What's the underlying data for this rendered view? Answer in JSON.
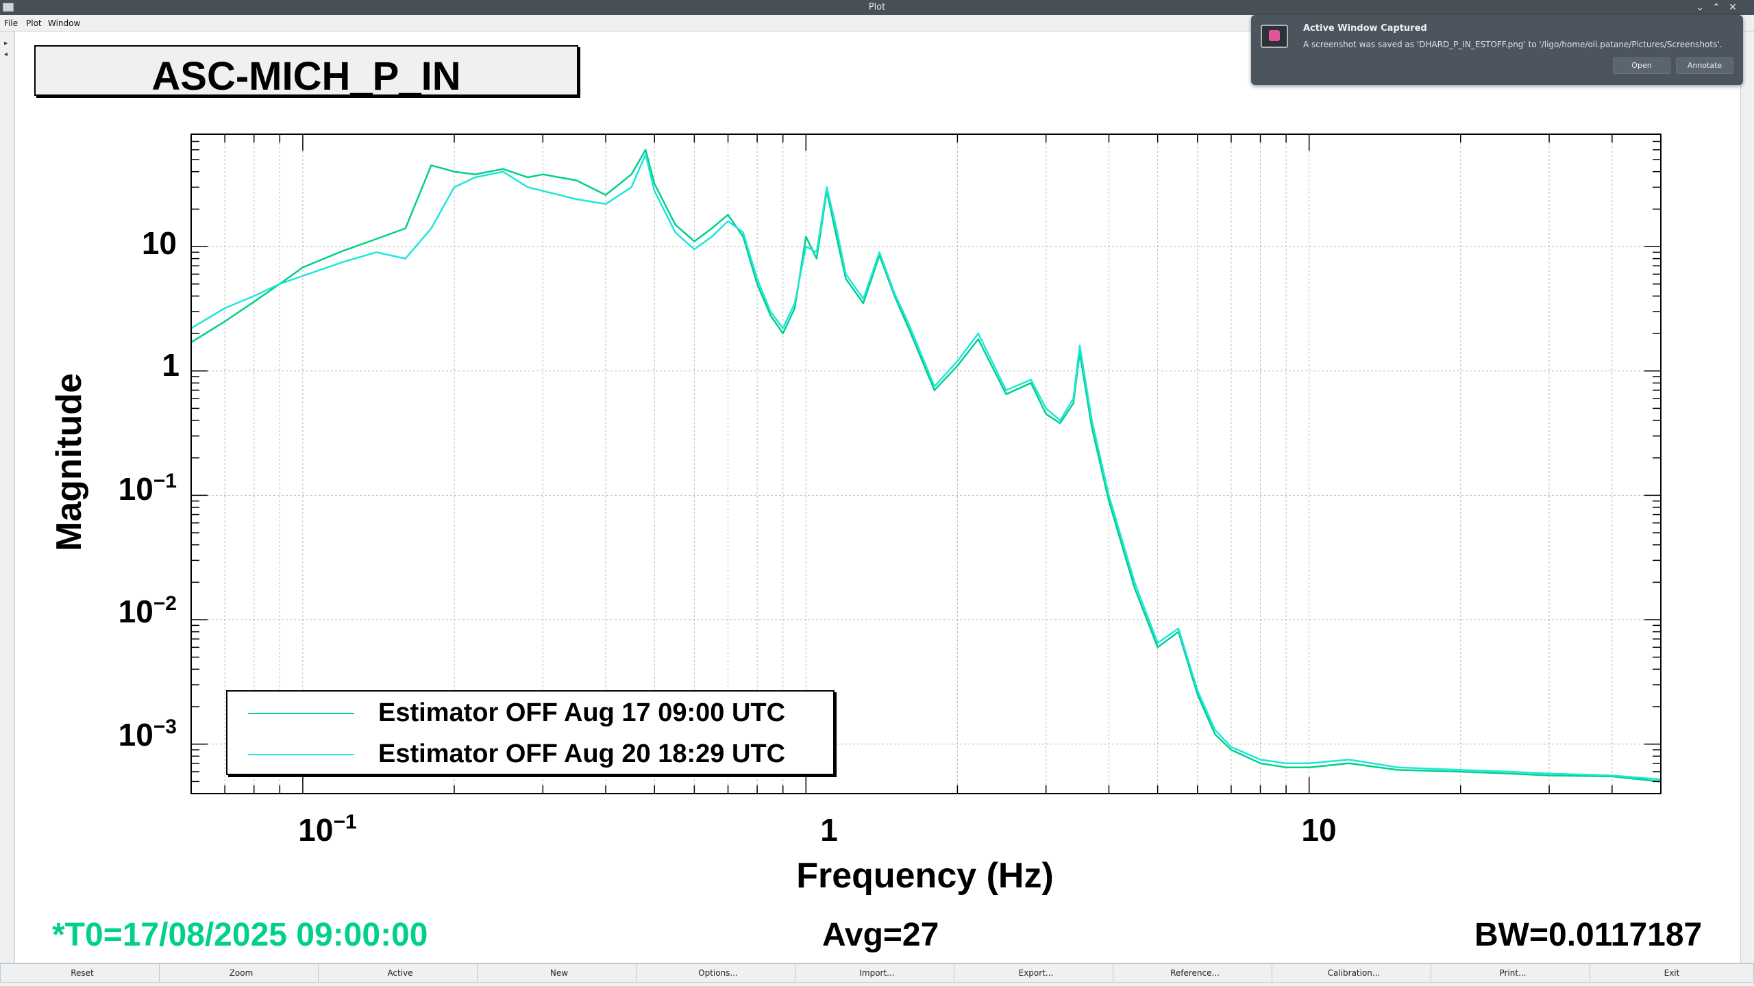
{
  "window": {
    "title": "Plot"
  },
  "menubar": {
    "items": [
      "File",
      "Plot",
      "Window"
    ]
  },
  "plot": {
    "title": "ASC-MICH_P_IN",
    "xlabel": "Frequency (Hz)",
    "ylabel": "Magnitude",
    "x_tick_labels": [
      {
        "base": "10",
        "exp": "−1"
      },
      {
        "base": "1",
        "exp": ""
      },
      {
        "base": "10",
        "exp": ""
      }
    ],
    "y_tick_labels": [
      {
        "base": "10",
        "exp": ""
      },
      {
        "base": "1",
        "exp": ""
      },
      {
        "base": "10",
        "exp": "−1"
      },
      {
        "base": "10",
        "exp": "−2"
      },
      {
        "base": "10",
        "exp": "−3"
      }
    ]
  },
  "chart_data": {
    "type": "line",
    "title": "ASC-MICH_P_IN",
    "xlabel": "Frequency (Hz)",
    "ylabel": "Magnitude",
    "xscale": "log",
    "yscale": "log",
    "xlim": [
      0.06,
      50
    ],
    "ylim": [
      0.0004,
      80
    ],
    "grid": true,
    "legend_position": "bottom-left",
    "series": [
      {
        "name": "Estimator OFF Aug 17 09:00 UTC",
        "color": "#00d08a",
        "x": [
          0.06,
          0.07,
          0.08,
          0.09,
          0.1,
          0.12,
          0.14,
          0.16,
          0.18,
          0.2,
          0.22,
          0.25,
          0.28,
          0.3,
          0.35,
          0.4,
          0.45,
          0.48,
          0.5,
          0.55,
          0.6,
          0.65,
          0.7,
          0.75,
          0.8,
          0.85,
          0.9,
          0.95,
          1.0,
          1.05,
          1.1,
          1.15,
          1.2,
          1.3,
          1.4,
          1.5,
          1.6,
          1.8,
          2.0,
          2.2,
          2.5,
          2.8,
          3.0,
          3.2,
          3.4,
          3.5,
          3.7,
          4.0,
          4.5,
          5.0,
          5.5,
          6.0,
          6.5,
          7.0,
          8.0,
          9.0,
          10,
          12,
          15,
          20,
          25,
          30,
          40,
          50
        ],
        "y": [
          1.7,
          2.5,
          3.6,
          5.0,
          6.8,
          9.2,
          11.5,
          14,
          45,
          40,
          38,
          42,
          36,
          38,
          34,
          26,
          38,
          60,
          32,
          15,
          11,
          14,
          18,
          12,
          5.0,
          2.8,
          2.0,
          3.2,
          12,
          8.0,
          28,
          12,
          5.5,
          3.5,
          8.5,
          4.0,
          2.2,
          0.7,
          1.1,
          1.8,
          0.65,
          0.8,
          0.45,
          0.38,
          0.55,
          1.4,
          0.35,
          0.09,
          0.018,
          0.006,
          0.008,
          0.0025,
          0.0012,
          0.0009,
          0.0007,
          0.00065,
          0.00065,
          0.0007,
          0.00062,
          0.0006,
          0.00058,
          0.00056,
          0.00055,
          0.0005
        ]
      },
      {
        "name": "Estimator OFF Aug 20 18:29 UTC",
        "color": "#1fe6da",
        "x": [
          0.06,
          0.07,
          0.08,
          0.09,
          0.1,
          0.12,
          0.14,
          0.16,
          0.18,
          0.2,
          0.22,
          0.25,
          0.28,
          0.3,
          0.35,
          0.4,
          0.45,
          0.48,
          0.5,
          0.55,
          0.6,
          0.65,
          0.7,
          0.75,
          0.8,
          0.85,
          0.9,
          0.95,
          1.0,
          1.05,
          1.1,
          1.15,
          1.2,
          1.3,
          1.4,
          1.5,
          1.6,
          1.8,
          2.0,
          2.2,
          2.5,
          2.8,
          3.0,
          3.2,
          3.4,
          3.5,
          3.7,
          4.0,
          4.5,
          5.0,
          5.5,
          6.0,
          6.5,
          7.0,
          8.0,
          9.0,
          10,
          12,
          15,
          20,
          25,
          30,
          40,
          50
        ],
        "y": [
          2.2,
          3.2,
          4.0,
          5.0,
          5.8,
          7.5,
          9.0,
          8.0,
          14,
          30,
          36,
          40,
          30,
          28,
          24,
          22,
          30,
          55,
          28,
          13,
          9.5,
          12,
          16,
          13,
          5.5,
          3.0,
          2.2,
          3.5,
          10,
          9.0,
          30,
          14,
          6.0,
          3.8,
          9.0,
          4.2,
          2.4,
          0.75,
          1.2,
          2.0,
          0.7,
          0.85,
          0.5,
          0.4,
          0.6,
          1.6,
          0.4,
          0.1,
          0.02,
          0.0065,
          0.0085,
          0.0027,
          0.0013,
          0.00095,
          0.00075,
          0.0007,
          0.0007,
          0.00075,
          0.00065,
          0.00062,
          0.0006,
          0.00058,
          0.00056,
          0.00052
        ]
      }
    ]
  },
  "legend": {
    "entries": [
      {
        "label": "Estimator OFF Aug 17 09:00 UTC",
        "color": "#00d08a"
      },
      {
        "label": "Estimator OFF Aug 20 18:29 UTC",
        "color": "#1fe6da"
      }
    ]
  },
  "status": {
    "t0": "*T0=17/08/2025 09:00:00",
    "avg": "Avg=27",
    "bw": "BW=0.0117187",
    "t0_color": "#00d08a"
  },
  "toolbar": {
    "buttons": [
      "Reset",
      "Zoom",
      "Active",
      "New",
      "Options...",
      "Import...",
      "Export...",
      "Reference...",
      "Calibration...",
      "Print...",
      "Exit"
    ]
  },
  "notification": {
    "title": "Active Window Captured",
    "body": "A screenshot was saved as 'DHARD_P_IN_ESTOFF.png' to '/ligo/home/oli.patane/Pictures/Screenshots'.",
    "open_label": "Open",
    "annotate_label": "Annotate",
    "icon": "screenshot-app-icon"
  }
}
